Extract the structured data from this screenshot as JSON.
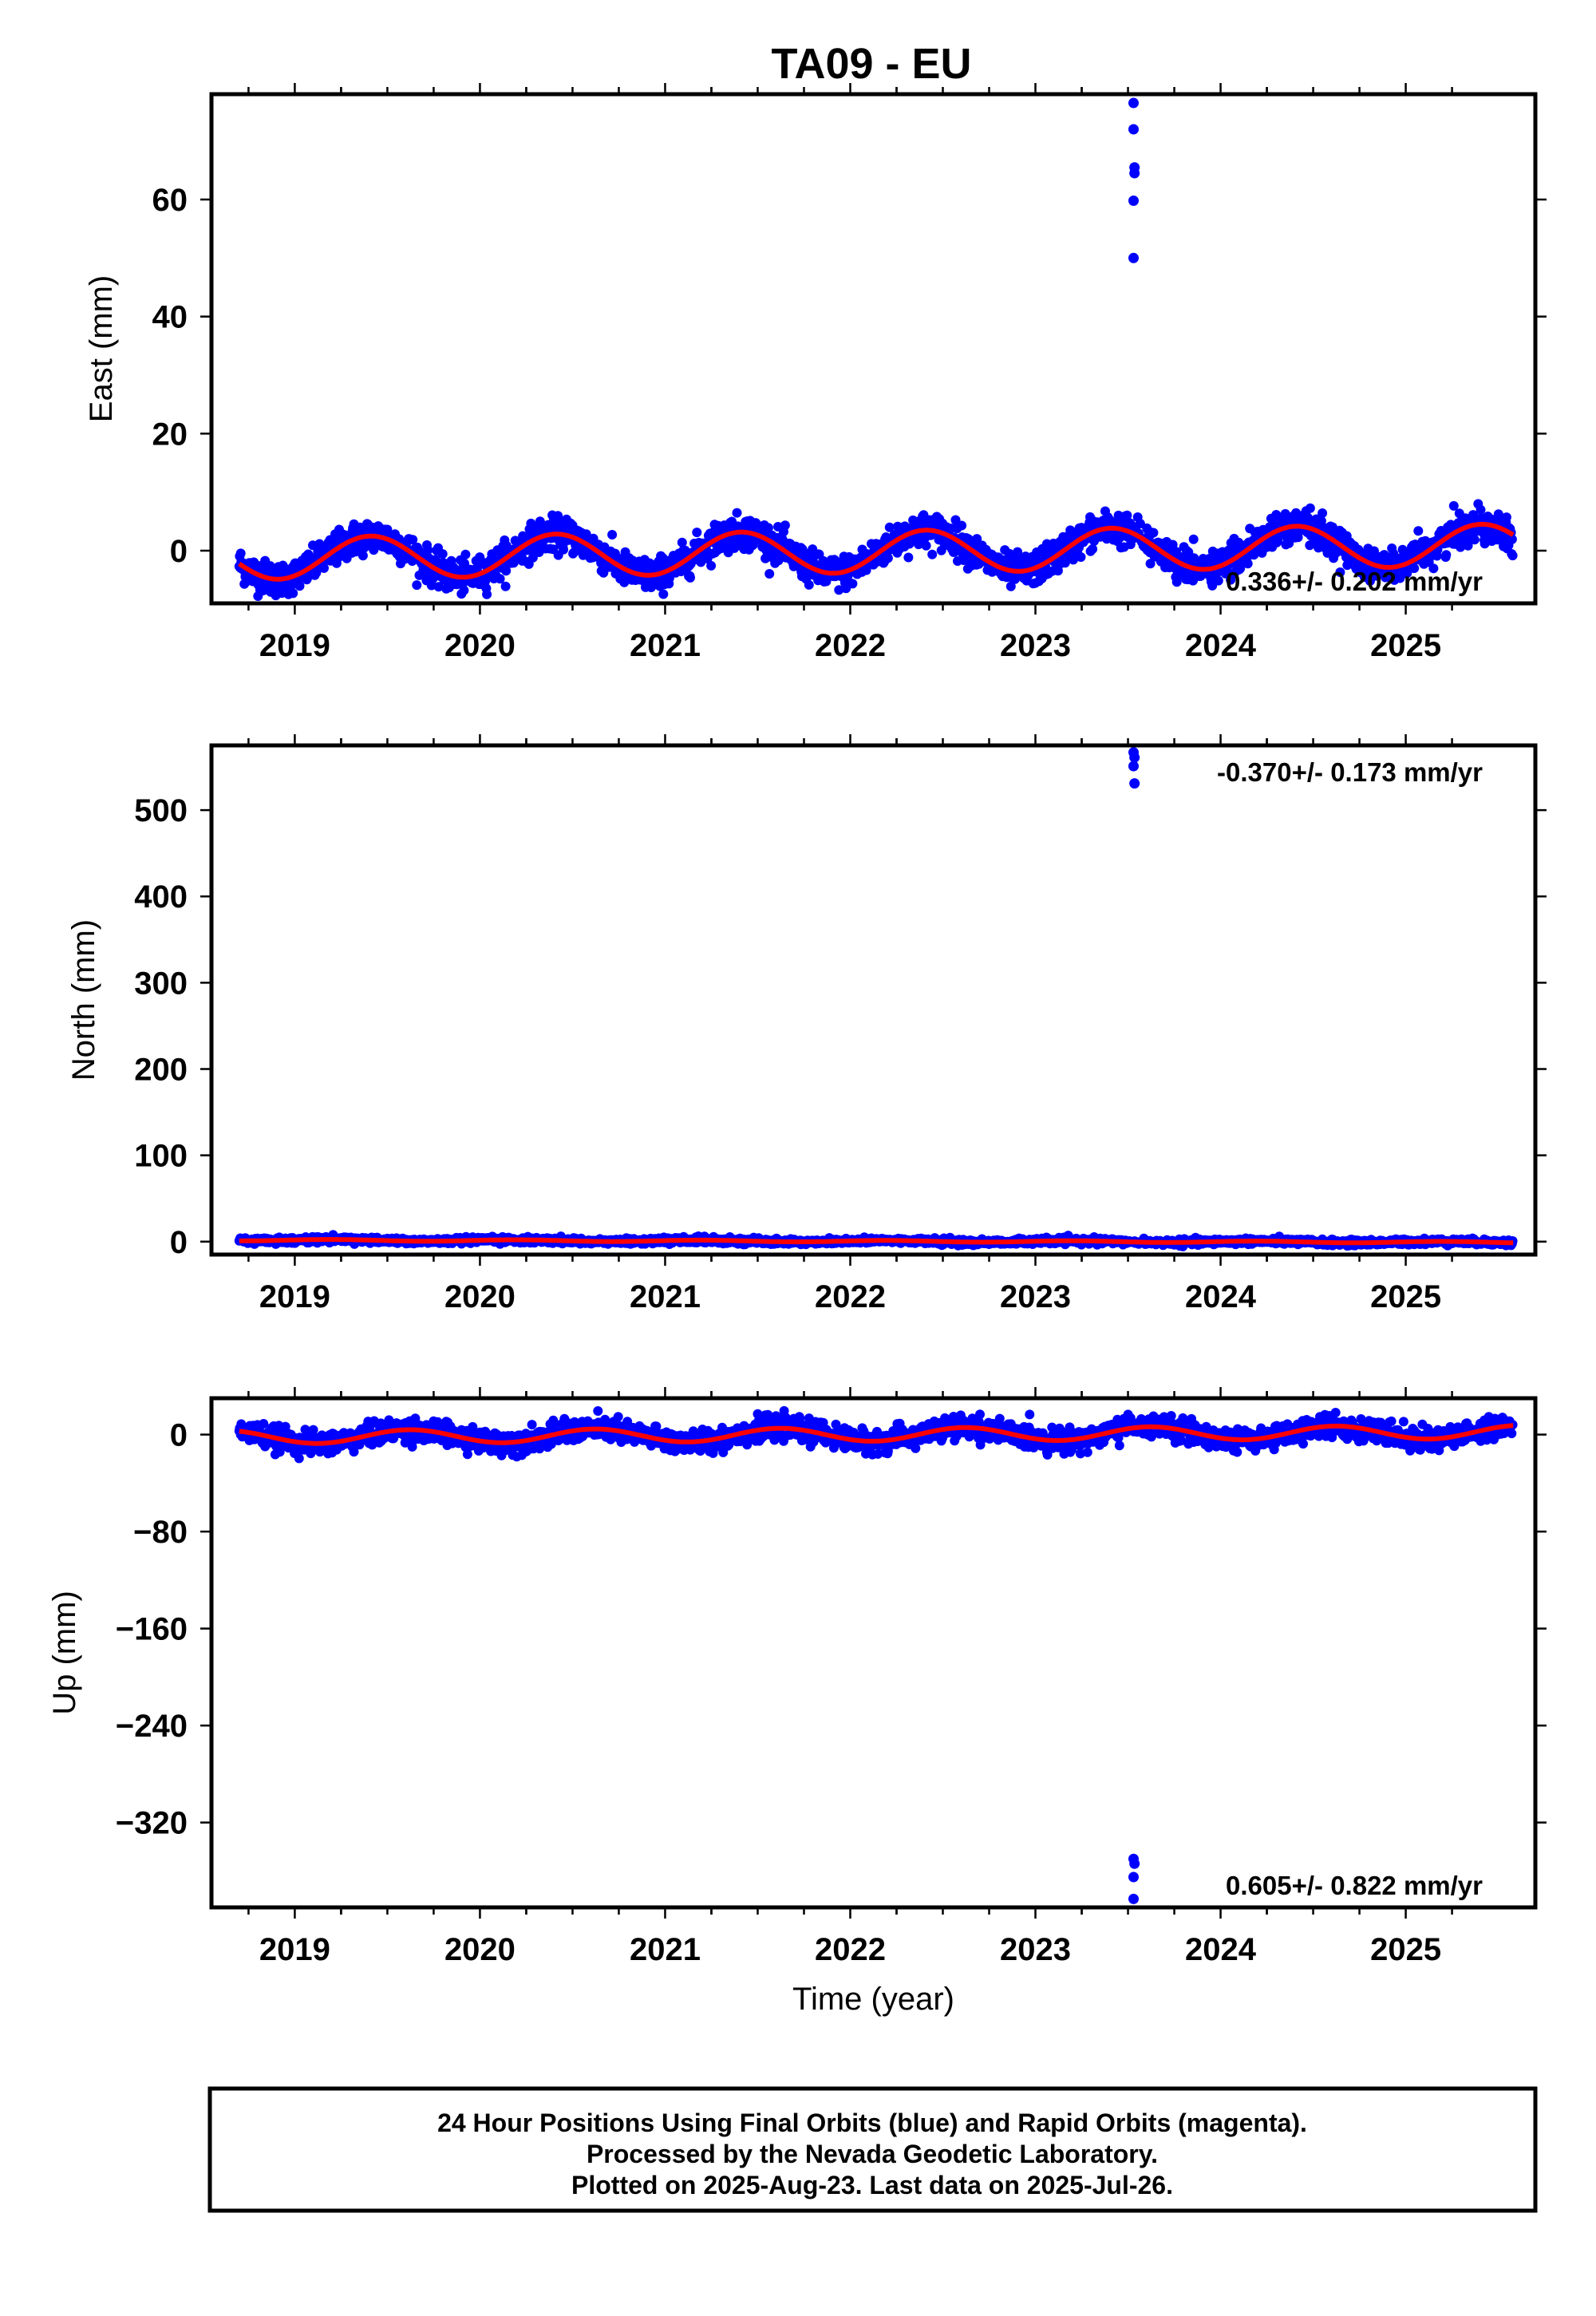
{
  "title": "TA09 - EU",
  "colors": {
    "final_orbits": "#0000ff",
    "model_fit": "#ff0000",
    "frame": "#000000"
  },
  "chart_data": [
    {
      "type": "scatter",
      "id": "east",
      "ylabel": "East (mm)",
      "xlabel": "",
      "xlim": [
        2018.55,
        2025.7
      ],
      "ylim": [
        -9,
        78
      ],
      "xticks": [
        2019,
        2020,
        2021,
        2022,
        2023,
        2024,
        2025
      ],
      "xtick_labels": [
        "2019",
        "2020",
        "2021",
        "2022",
        "2023",
        "2024",
        "2025"
      ],
      "yticks": [
        0,
        20,
        40,
        60
      ],
      "ytick_labels": [
        "0",
        "20",
        "40",
        "60"
      ],
      "rate": "0.336+/- 0.202 mm/yr",
      "rate_position": "bottom-right",
      "model": {
        "offset": -0.2,
        "trend": 0.336,
        "t0": 2022.1,
        "amplitude": 3.6,
        "peak_phase": 0.41
      },
      "series": [
        {
          "label": "final orbits (blue)",
          "sampled_daily": {
            "start": 2018.7,
            "end": 2025.58,
            "step": 0.00274,
            "scatter_mm": 1.4
          },
          "outliers": [
            [
              2023.53,
              76.5
            ],
            [
              2023.53,
              72.0
            ],
            [
              2023.535,
              65.5
            ],
            [
              2023.535,
              64.5
            ],
            [
              2023.53,
              59.8
            ],
            [
              2023.53,
              50.0
            ]
          ]
        }
      ]
    },
    {
      "type": "scatter",
      "id": "north",
      "ylabel": "North (mm)",
      "xlabel": "",
      "xlim": [
        2018.55,
        2025.7
      ],
      "ylim": [
        -15,
        575
      ],
      "xticks": [
        2019,
        2020,
        2021,
        2022,
        2023,
        2024,
        2025
      ],
      "xtick_labels": [
        "2019",
        "2020",
        "2021",
        "2022",
        "2023",
        "2024",
        "2025"
      ],
      "yticks": [
        0,
        100,
        200,
        300,
        400,
        500
      ],
      "ytick_labels": [
        "0",
        "100",
        "200",
        "300",
        "400",
        "500"
      ],
      "rate": "-0.370+/- 0.173 mm/yr",
      "rate_position": "top-right",
      "model": {
        "offset": 0.5,
        "trend": -0.37,
        "t0": 2022.1,
        "amplitude": 0.9,
        "peak_phase": 0.2
      },
      "series": [
        {
          "label": "final orbits (blue)",
          "sampled_daily": {
            "start": 2018.7,
            "end": 2025.58,
            "step": 0.00274,
            "scatter_mm": 1.6
          },
          "outliers": [
            [
              2023.53,
              567
            ],
            [
              2023.535,
              561
            ],
            [
              2023.53,
              551
            ],
            [
              2023.535,
              531
            ]
          ]
        }
      ]
    },
    {
      "type": "scatter",
      "id": "up",
      "ylabel": "Up (mm)",
      "xlabel": "Time (year)",
      "xlim": [
        2018.55,
        2025.7
      ],
      "ylim": [
        -390,
        30
      ],
      "xticks": [
        2019,
        2020,
        2021,
        2022,
        2023,
        2024,
        2025
      ],
      "xtick_labels": [
        "2019",
        "2020",
        "2021",
        "2022",
        "2023",
        "2024",
        "2025"
      ],
      "yticks": [
        0,
        -80,
        -160,
        -240,
        -320
      ],
      "ytick_labels": [
        "0",
        "−80",
        "−160",
        "−240",
        "−320"
      ],
      "rate": "0.605+/- 0.822 mm/yr",
      "rate_position": "bottom-right",
      "model": {
        "offset": 0.0,
        "trend": 0.605,
        "t0": 2022.1,
        "amplitude": 5.5,
        "peak_phase": 0.62
      },
      "series": [
        {
          "label": "final orbits (blue)",
          "sampled_daily": {
            "start": 2018.7,
            "end": 2025.58,
            "step": 0.00274,
            "scatter_mm": 4.5
          },
          "outliers": [
            [
              2023.53,
              -350
            ],
            [
              2023.535,
              -354
            ],
            [
              2023.53,
              -365
            ],
            [
              2023.53,
              -383
            ]
          ]
        }
      ]
    }
  ],
  "footer": {
    "line1": "24 Hour Positions Using Final Orbits (blue) and Rapid Orbits (magenta).",
    "line2": "Processed by the Nevada Geodetic Laboratory.",
    "line3": "Plotted on 2025-Aug-23. Last data on 2025-Jul-26."
  }
}
